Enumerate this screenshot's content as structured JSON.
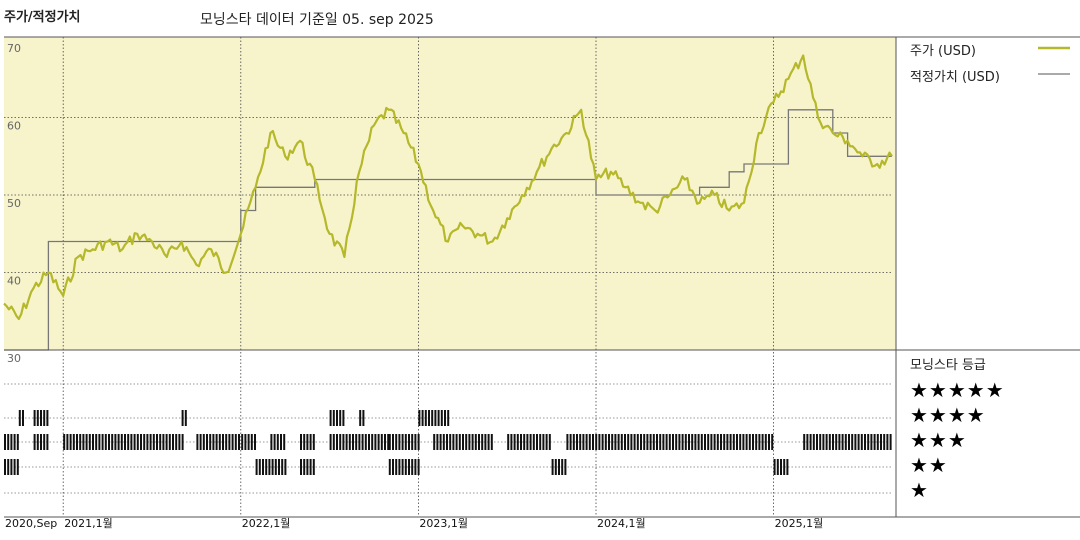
{
  "header": {
    "left_title": "주가/적정가치",
    "center_title": "모닝스타 데이터 기준일 05. sep 2025"
  },
  "legend": {
    "price_label": "주가 (USD)",
    "fair_label": "적정가치 (USD)",
    "price_color": "#b5b82a",
    "fair_color": "#777777"
  },
  "rating_panel": {
    "title": "모닝스타 등급",
    "stars": [
      "★★★★★",
      "★★★★",
      "★★★",
      "★★",
      "★"
    ]
  },
  "chart_data": {
    "type": "line",
    "y_ticks": [
      "70",
      "60",
      "50",
      "40",
      "30"
    ],
    "ylim": [
      30,
      70
    ],
    "x_ticks": [
      "2020,Sep",
      "2021,1월",
      "2022,1월",
      "2023,1월",
      "2024,1월",
      "2025,1월"
    ],
    "x_tick_dates": [
      "2020-09",
      "2021-01",
      "2022-01",
      "2023-01",
      "2024-01",
      "2025-01"
    ],
    "xlim": [
      "2020-09",
      "2025-09"
    ],
    "series": [
      {
        "name": "주가 (USD)",
        "x": [
          "2020-09",
          "2020-10",
          "2020-11",
          "2020-12",
          "2021-01",
          "2021-02",
          "2021-03",
          "2021-04",
          "2021-05",
          "2021-06",
          "2021-07",
          "2021-08",
          "2021-09",
          "2021-10",
          "2021-11",
          "2021-12",
          "2022-01",
          "2022-02",
          "2022-03",
          "2022-04",
          "2022-05",
          "2022-06",
          "2022-07",
          "2022-08",
          "2022-09",
          "2022-10",
          "2022-11",
          "2022-12",
          "2023-01",
          "2023-02",
          "2023-03",
          "2023-04",
          "2023-05",
          "2023-06",
          "2023-07",
          "2023-08",
          "2023-09",
          "2023-10",
          "2023-11",
          "2023-12",
          "2024-01",
          "2024-02",
          "2024-03",
          "2024-04",
          "2024-05",
          "2024-06",
          "2024-07",
          "2024-08",
          "2024-09",
          "2024-10",
          "2024-11",
          "2024-12",
          "2025-01",
          "2025-02",
          "2025-03",
          "2025-04",
          "2025-05",
          "2025-06",
          "2025-07",
          "2025-08",
          "2025-09"
        ],
        "y": [
          36,
          34,
          38,
          40,
          37,
          42,
          43,
          44,
          43,
          45,
          44,
          42,
          44,
          41,
          43,
          40,
          45,
          51,
          58,
          55,
          57,
          52,
          45,
          42,
          53,
          59,
          61,
          58,
          54,
          48,
          44,
          46,
          45,
          44,
          47,
          50,
          53,
          56,
          58,
          61,
          52,
          53,
          51,
          49,
          48,
          50,
          52,
          49,
          50,
          48,
          49,
          58,
          62,
          65,
          68,
          60,
          58,
          57,
          55,
          54,
          55
        ]
      },
      {
        "name": "적정가치 (USD)",
        "x": [
          "2020-09",
          "2020-12",
          "2021-01",
          "2021-12",
          "2022-01",
          "2022-02",
          "2022-05",
          "2022-06",
          "2023-06",
          "2024-01",
          "2024-08",
          "2024-10",
          "2024-11",
          "2025-01",
          "2025-02",
          "2025-04",
          "2025-05",
          "2025-06",
          "2025-09"
        ],
        "y": [
          30,
          44,
          44,
          44,
          48,
          51,
          51,
          52,
          52,
          50,
          51,
          53,
          54,
          54,
          61,
          61,
          58,
          55,
          55
        ]
      }
    ],
    "rating_bands": [
      {
        "rating": 5,
        "segments": [
          [
            "2020-10",
            "2020-10"
          ],
          [
            "2020-11",
            "2020-12"
          ],
          [
            "2021-09",
            "2021-09"
          ],
          [
            "2022-07",
            "2022-08"
          ],
          [
            "2022-09",
            "2022-09"
          ],
          [
            "2023-01",
            "2023-03"
          ]
        ]
      },
      {
        "rating": 4,
        "segments": [
          [
            "2020-09",
            "2020-10"
          ],
          [
            "2020-11",
            "2020-12"
          ],
          [
            "2021-01",
            "2021-09"
          ],
          [
            "2021-10",
            "2022-02"
          ],
          [
            "2022-03",
            "2022-04"
          ],
          [
            "2022-05",
            "2022-06"
          ],
          [
            "2022-07",
            "2022-11"
          ],
          [
            "2022-11",
            "2023-01"
          ],
          [
            "2023-02",
            "2023-06"
          ],
          [
            "2023-07",
            "2023-10"
          ],
          [
            "2023-11",
            "2025-01"
          ],
          [
            "2025-03",
            "2025-09"
          ]
        ]
      },
      {
        "rating": 3,
        "segments": [
          [
            "2020-09",
            "2020-10"
          ],
          [
            "2022-02",
            "2022-04"
          ],
          [
            "2022-05",
            "2022-06"
          ],
          [
            "2022-11",
            "2023-01"
          ],
          [
            "2023-10",
            "2023-11"
          ],
          [
            "2025-01",
            "2025-02"
          ]
        ]
      }
    ]
  }
}
